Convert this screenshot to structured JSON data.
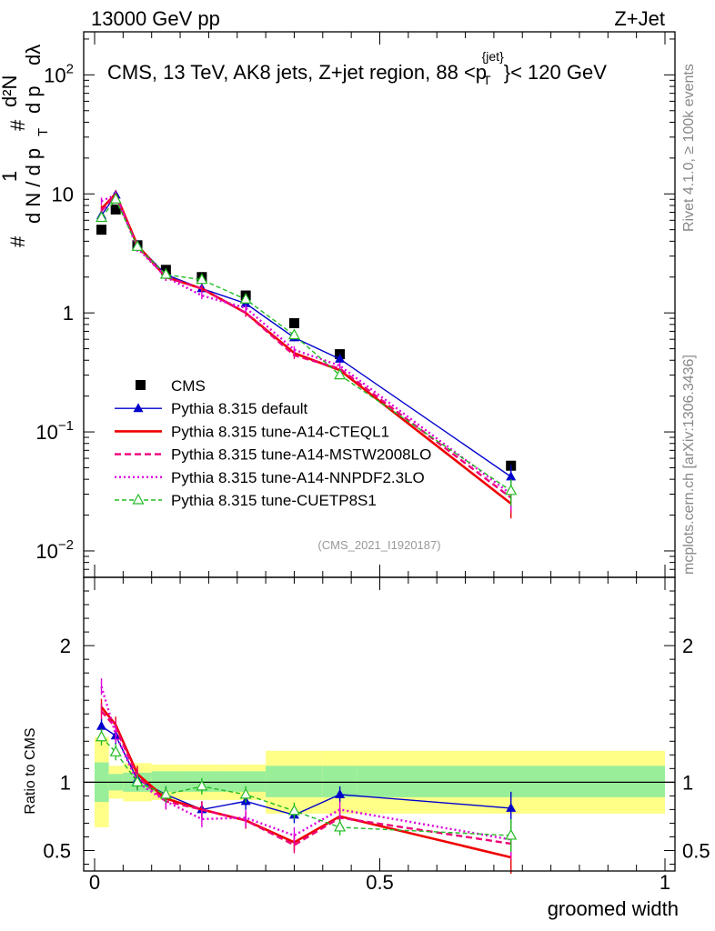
{
  "header": {
    "left_title": "13000 GeV pp",
    "right_title": "Z+Jet"
  },
  "side_labels": {
    "rivet": "Rivet 4.1.0, ≥ 100k events",
    "mcplots": "mcplots.cern.ch [arXiv:1306.3436]"
  },
  "chart_data": [
    {
      "type": "line",
      "title": "CMS, 13 TeV, AK8 jets, Z+jet region, 88 <p_T^{jet}< 120 GeV",
      "title_parts": {
        "pre": "CMS, 13 TeV, AK8 jets, Z+jet region, 88 <p",
        "sup": "{jet}",
        "sub": "T",
        "post": "}< 120 GeV"
      },
      "ylabel": "1/N dN/d p_T dλ",
      "ylabel_parts": {
        "hash": "#",
        "one": "1",
        "dN": "d N / d p",
        "T": "T",
        "d2N": "d²N",
        "dpt": "d p",
        "dl": "dλ"
      },
      "yscale": "log",
      "xlim": [
        0,
        1
      ],
      "ylim": [
        0.006,
        230
      ],
      "y_ticks": [
        {
          "value": 0.01,
          "base": "10",
          "exp": "−2",
          "text": ""
        },
        {
          "value": 0.1,
          "base": "10",
          "exp": "−1",
          "text": ""
        },
        {
          "value": 1,
          "base": "",
          "exp": "",
          "text": "1"
        },
        {
          "value": 10,
          "base": "",
          "exp": "",
          "text": "10"
        },
        {
          "value": 100,
          "base": "10",
          "exp": "2",
          "text": ""
        }
      ],
      "reference": "(CMS_2021_I1920187)",
      "legend_position": "lower-left",
      "series": [
        {
          "name": "CMS",
          "style": "data",
          "color": "#000000",
          "x": [
            0.012,
            0.037,
            0.075,
            0.125,
            0.188,
            0.265,
            0.35,
            0.43,
            0.73
          ],
          "values": [
            5.0,
            7.4,
            3.7,
            2.3,
            2.0,
            1.4,
            0.82,
            0.45,
            0.052
          ]
        },
        {
          "name": "Pythia 8.315 default",
          "style": "solid",
          "color": "#0000cc",
          "marker": "triangle-filled",
          "x": [
            0.012,
            0.037,
            0.075,
            0.125,
            0.188,
            0.265,
            0.35,
            0.43,
            0.73
          ],
          "values": [
            6.6,
            9.8,
            3.7,
            2.1,
            1.6,
            1.2,
            0.62,
            0.41,
            0.042
          ]
        },
        {
          "name": "Pythia 8.315 tune-A14-CTEQL1",
          "style": "solid-thick",
          "color": "#ee0000",
          "x": [
            0.012,
            0.037,
            0.075,
            0.125,
            0.188,
            0.265,
            0.35,
            0.43,
            0.73
          ],
          "values": [
            7.5,
            10.0,
            3.7,
            2.0,
            1.6,
            1.0,
            0.46,
            0.33,
            0.025
          ]
        },
        {
          "name": "Pythia 8.315 tune-A14-MSTW2008LO",
          "style": "dashed",
          "color": "#ee0077",
          "x": [
            0.012,
            0.037,
            0.075,
            0.125,
            0.188,
            0.265,
            0.35,
            0.43,
            0.73
          ],
          "values": [
            7.2,
            9.8,
            3.6,
            2.0,
            1.6,
            1.0,
            0.44,
            0.34,
            0.028
          ]
        },
        {
          "name": "Pythia 8.315 tune-A14-NNPDF2.3LO",
          "style": "dotted",
          "color": "#dd00dd",
          "x": [
            0.012,
            0.037,
            0.075,
            0.125,
            0.188,
            0.265,
            0.35,
            0.43,
            0.73
          ],
          "values": [
            8.7,
            9.8,
            3.5,
            2.0,
            1.4,
            1.1,
            0.49,
            0.36,
            0.03
          ]
        },
        {
          "name": "Pythia 8.315 tune-CUETP8S1",
          "style": "dashed-fine",
          "color": "#22bb22",
          "marker": "triangle-open",
          "x": [
            0.012,
            0.037,
            0.075,
            0.125,
            0.188,
            0.265,
            0.35,
            0.43,
            0.73
          ],
          "values": [
            6.3,
            9.0,
            3.6,
            2.1,
            1.9,
            1.3,
            0.65,
            0.3,
            0.032
          ]
        }
      ]
    },
    {
      "type": "line",
      "ylabel": "Ratio to CMS",
      "xlabel": "groomed width",
      "xlim": [
        0,
        1
      ],
      "ylim": [
        0.35,
        2.5
      ],
      "x_ticks": [
        {
          "value": 0,
          "text": "0"
        },
        {
          "value": 0.5,
          "text": "0.5"
        },
        {
          "value": 1,
          "text": "1"
        }
      ],
      "y_ticks": [
        {
          "value": 0.5,
          "text": "0.5"
        },
        {
          "value": 1,
          "text": "1"
        },
        {
          "value": 2,
          "text": "2"
        }
      ],
      "bin_edges": [
        0,
        0.025,
        0.05,
        0.1,
        0.15,
        0.225,
        0.3,
        0.4,
        0.46,
        1.0
      ],
      "band_inner": [
        [
          0.855,
          1.145
        ],
        [
          0.94,
          1.06
        ],
        [
          0.93,
          1.07
        ],
        [
          0.93,
          1.08
        ],
        [
          0.93,
          1.08
        ],
        [
          0.93,
          1.08
        ],
        [
          0.89,
          1.12
        ],
        [
          0.89,
          1.12
        ],
        [
          0.89,
          1.12
        ]
      ],
      "band_outer": [
        [
          0.67,
          1.33
        ],
        [
          0.88,
          1.12
        ],
        [
          0.86,
          1.14
        ],
        [
          0.87,
          1.13
        ],
        [
          0.87,
          1.13
        ],
        [
          0.87,
          1.13
        ],
        [
          0.77,
          1.23
        ],
        [
          0.77,
          1.23
        ],
        [
          0.77,
          1.23
        ]
      ],
      "series": [
        {
          "name": "Pythia 8.315 default",
          "values": [
            1.41,
            1.34,
            1.02,
            0.91,
            0.8,
            0.86,
            0.76,
            0.91,
            0.81
          ]
        },
        {
          "name": "Pythia 8.315 tune-A14-CTEQL1",
          "values": [
            1.55,
            1.42,
            1.06,
            0.88,
            0.8,
            0.72,
            0.56,
            0.75,
            0.45
          ]
        },
        {
          "name": "Pythia 8.315 tune-A14-MSTW2008LO",
          "values": [
            1.52,
            1.4,
            1.04,
            0.86,
            0.8,
            0.72,
            0.54,
            0.74,
            0.55
          ]
        },
        {
          "name": "Pythia 8.315 tune-A14-NNPDF2.3LO",
          "values": [
            1.7,
            1.35,
            1.0,
            0.86,
            0.73,
            0.74,
            0.61,
            0.8,
            0.58
          ]
        },
        {
          "name": "Pythia 8.315 tune-CUETP8S1",
          "values": [
            1.33,
            1.22,
            1.0,
            0.91,
            0.97,
            0.91,
            0.79,
            0.67,
            0.61
          ]
        }
      ]
    }
  ]
}
